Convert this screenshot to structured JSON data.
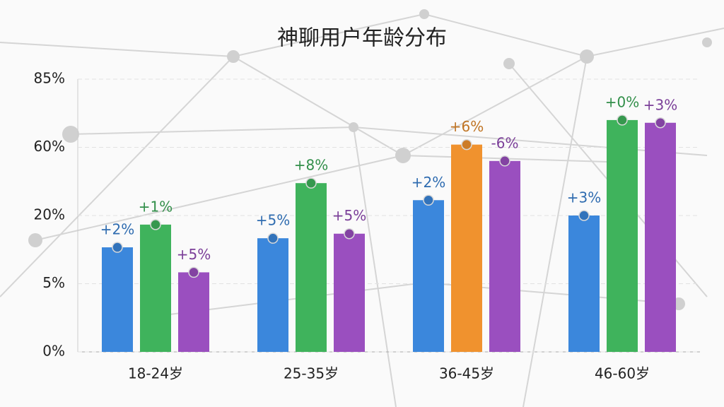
{
  "chart_data": {
    "type": "bar",
    "title": "神聊用户年龄分布",
    "categories": [
      "18-24岁",
      "25-35岁",
      "36-45岁",
      "46-60岁"
    ],
    "ylim": [
      0,
      85
    ],
    "yticks": [
      {
        "value": 0,
        "label": "0%"
      },
      {
        "value": 5,
        "label": "5%"
      },
      {
        "value": 20,
        "label": "20%"
      },
      {
        "value": 60,
        "label": "60%"
      },
      {
        "value": 85,
        "label": "85%"
      }
    ],
    "scale": "piecewise",
    "grid": true,
    "series": [
      {
        "color": "#3b87dc",
        "values": [
          13,
          15,
          29,
          20
        ],
        "value_labels": [
          "+2%",
          "+5%",
          "+2%",
          "+3%"
        ]
      },
      {
        "color": "#3fb35c",
        "colors": [
          "#3fb35c",
          "#3fb35c",
          "#f0922e",
          "#3fb35c"
        ],
        "values": [
          18,
          39,
          61,
          70
        ],
        "value_labels": [
          "+1%",
          "+8%",
          "+6%",
          "+0%"
        ]
      },
      {
        "color": "#9a4fbf",
        "values": [
          7.5,
          16,
          52,
          69
        ],
        "value_labels": [
          "+5%",
          "+5%",
          "-6%",
          "+3%"
        ]
      }
    ]
  }
}
